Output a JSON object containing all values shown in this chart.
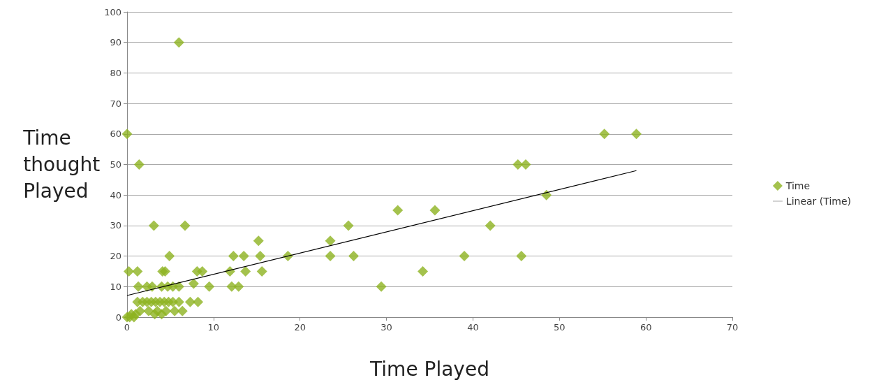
{
  "chart_data": {
    "type": "scatter",
    "xlabel": "Time Played",
    "ylabel": "Time thought Played",
    "xlim": [
      0,
      70
    ],
    "xticks": [
      0,
      10,
      20,
      30,
      40,
      50,
      60,
      70
    ],
    "ylim": [
      0,
      100
    ],
    "yticks": [
      0,
      10,
      20,
      30,
      40,
      50,
      60,
      70,
      80,
      90,
      100
    ],
    "grid": "y",
    "legend": "right",
    "series": [
      {
        "name": "Time",
        "marker": "diamond",
        "color": "#8db320",
        "x": [
          6.0,
          0,
          55.2,
          58.9,
          1.4,
          45.2,
          46.1,
          48.5,
          31.3,
          35.6,
          3.1,
          6.7,
          25.6,
          42.0,
          15.2,
          23.5,
          4.9,
          12.3,
          13.5,
          15.4,
          18.6,
          23.5,
          26.2,
          39.0,
          45.6,
          0.2,
          1.2,
          4.1,
          4.4,
          8.1,
          8.7,
          11.9,
          13.7,
          15.6,
          34.2,
          1.3,
          2.3,
          2.9,
          4.0,
          4.7,
          5.3,
          6.0,
          9.5,
          12.1,
          12.9,
          29.4,
          7.7,
          1.2,
          1.8,
          2.3,
          2.8,
          3.3,
          3.8,
          4.3,
          4.8,
          5.3,
          6.0,
          7.3,
          8.2,
          1.5,
          2.5,
          3.5,
          4.5,
          5.5,
          6.4,
          0.5,
          1.0,
          3.2,
          4.0,
          0,
          0.3,
          0.8
        ],
        "values": [
          90,
          60,
          60,
          60,
          50,
          50,
          50,
          40,
          35,
          35,
          30,
          30,
          30,
          30,
          25,
          25,
          20,
          20,
          20,
          20,
          20,
          20,
          20,
          20,
          20,
          15,
          15,
          15,
          15,
          15,
          15,
          15,
          15,
          15,
          15,
          10,
          10,
          10,
          10,
          10,
          10,
          10,
          10,
          10,
          10,
          10,
          11,
          5,
          5,
          5,
          5,
          5,
          5,
          5,
          5,
          5,
          5,
          5,
          5,
          2,
          2,
          2,
          2,
          2,
          2,
          1,
          1,
          1,
          1,
          0,
          0,
          0
        ]
      },
      {
        "name": "Linear (Time)",
        "type": "line",
        "marker": "none",
        "line_style": "solid",
        "color": "#000000",
        "x": [
          0,
          58.9
        ],
        "values": [
          7.1,
          48
        ]
      }
    ]
  }
}
